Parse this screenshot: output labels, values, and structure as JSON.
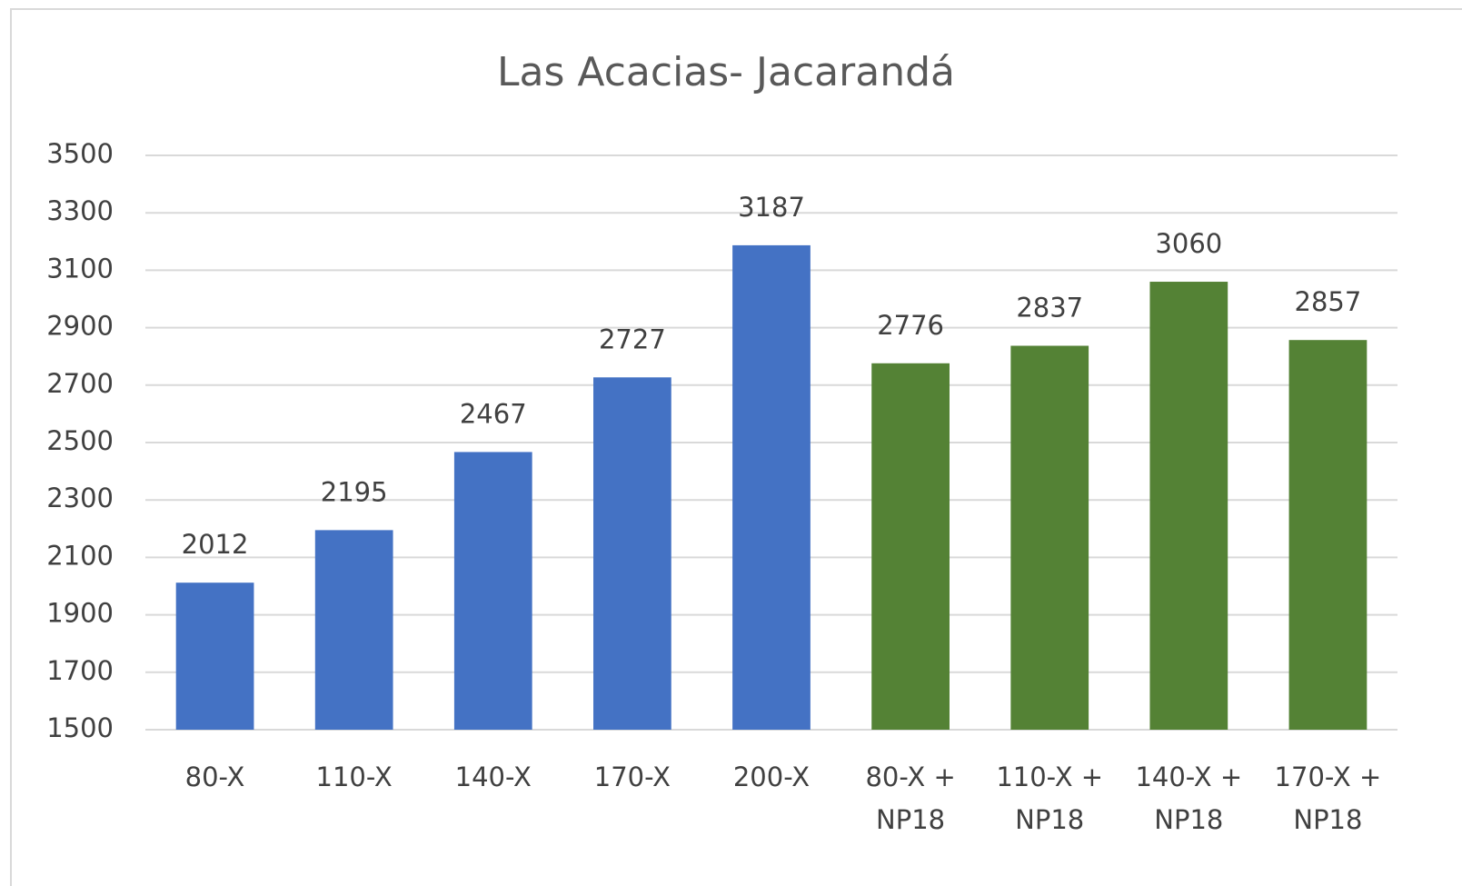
{
  "chart_data": {
    "type": "bar",
    "title": "Las Acacias- Jacarandá",
    "categories": [
      "80-X",
      "110-X",
      "140-X",
      "170-X",
      "200-X",
      "80-X + NP18",
      "110-X + NP18",
      "140-X + NP18",
      "170-X + NP18"
    ],
    "values": [
      2012,
      2195,
      2467,
      2727,
      3187,
      2776,
      2837,
      3060,
      2857
    ],
    "colors": [
      "#4472c4",
      "#4472c4",
      "#4472c4",
      "#4472c4",
      "#4472c4",
      "#548235",
      "#548235",
      "#548235",
      "#548235"
    ],
    "ylim": [
      1500,
      3500
    ],
    "yticks": [
      1500,
      1700,
      1900,
      2100,
      2300,
      2500,
      2700,
      2900,
      3100,
      3300,
      3500
    ],
    "grid": true
  }
}
